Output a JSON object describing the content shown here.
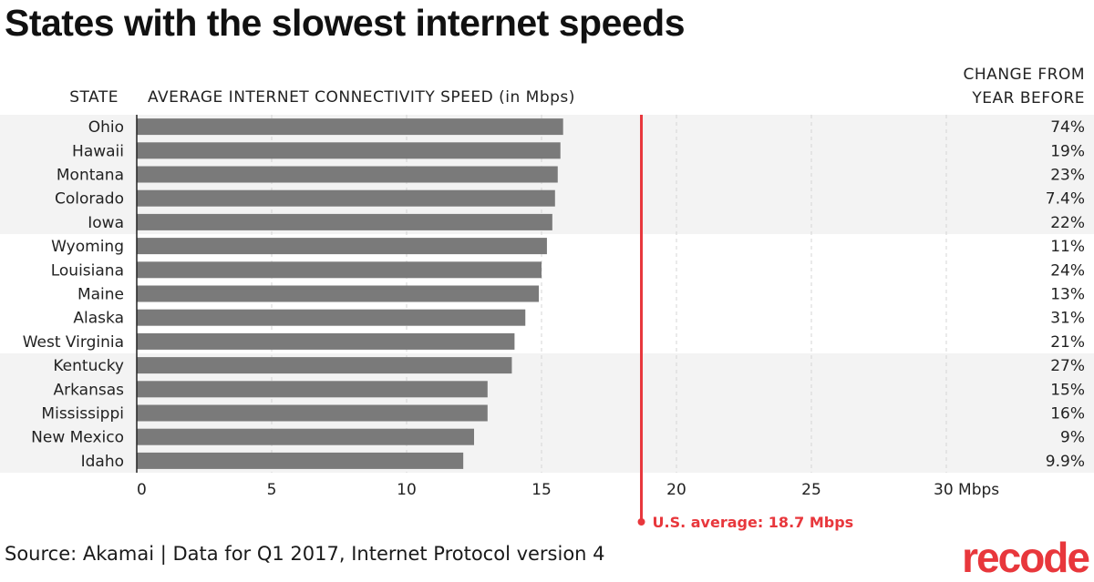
{
  "title": "States with the slowest internet speeds",
  "source": "Source: Akamai | Data for Q1 2017, Internet Protocol version 4",
  "logo": "recode",
  "colors": {
    "bar": "#7a7a7a",
    "band": "#f3f3f3",
    "average": "#e8373c",
    "text": "#222222",
    "grid": "#d4d4d4"
  },
  "chart_data": {
    "type": "bar",
    "orientation": "horizontal",
    "title": "States with the slowest internet speeds",
    "state_header": "STATE",
    "xlabel": "AVERAGE INTERNET CONNECTIVITY SPEED (in Mbps)",
    "change_header": [
      "CHANGE FROM",
      "YEAR BEFORE"
    ],
    "xlim": [
      0,
      30
    ],
    "ticks": [
      0,
      5,
      10,
      15,
      20,
      25,
      30
    ],
    "tick_labels": [
      "0",
      "5",
      "10",
      "15",
      "20",
      "25",
      "30 Mbps"
    ],
    "categories": [
      "Ohio",
      "Hawaii",
      "Montana",
      "Colorado",
      "Iowa",
      "Wyoming",
      "Louisiana",
      "Maine",
      "Alaska",
      "West Virginia",
      "Kentucky",
      "Arkansas",
      "Mississippi",
      "New Mexico",
      "Idaho"
    ],
    "values": [
      15.8,
      15.7,
      15.6,
      15.5,
      15.4,
      15.2,
      15.0,
      14.9,
      14.4,
      14.0,
      13.9,
      13.0,
      13.0,
      12.5,
      12.1
    ],
    "change": [
      "74%",
      "19%",
      "23%",
      "7.4%",
      "22%",
      "11%",
      "24%",
      "13%",
      "31%",
      "21%",
      "27%",
      "15%",
      "16%",
      "9%",
      "9.9%"
    ],
    "bands": [
      [
        0,
        4
      ],
      [
        10,
        14
      ]
    ],
    "reference_line": {
      "value": 18.7,
      "label": "U.S. average: 18.7 Mbps"
    }
  }
}
